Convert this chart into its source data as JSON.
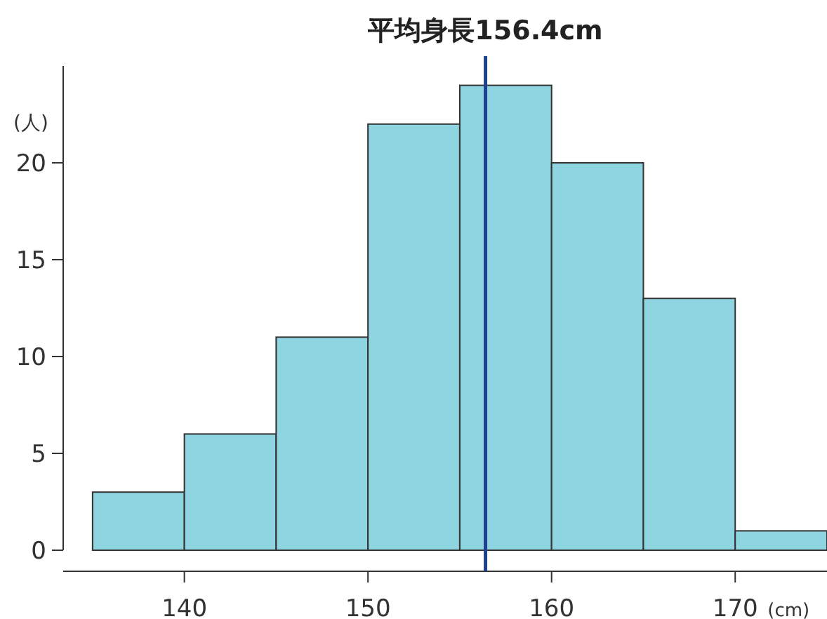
{
  "chart_data": {
    "type": "histogram",
    "bins": [
      135,
      140,
      145,
      150,
      155,
      160,
      165,
      170,
      175
    ],
    "values": [
      3,
      6,
      11,
      22,
      24,
      20,
      13,
      1
    ],
    "color": "#8fd4e1",
    "xlim": [
      133.4,
      175
    ],
    "ylim": [
      0,
      25
    ],
    "xticks": [
      140,
      150,
      160,
      170
    ],
    "yticks": [
      0,
      5,
      10,
      15,
      20
    ],
    "xlabel": "(cm)",
    "ylabel": "(人)",
    "grid": false,
    "ref_lines": [
      {
        "axis": "x",
        "value": 156.4,
        "label": "平均身長156.4cm",
        "color": "#1f3f8f"
      }
    ]
  }
}
